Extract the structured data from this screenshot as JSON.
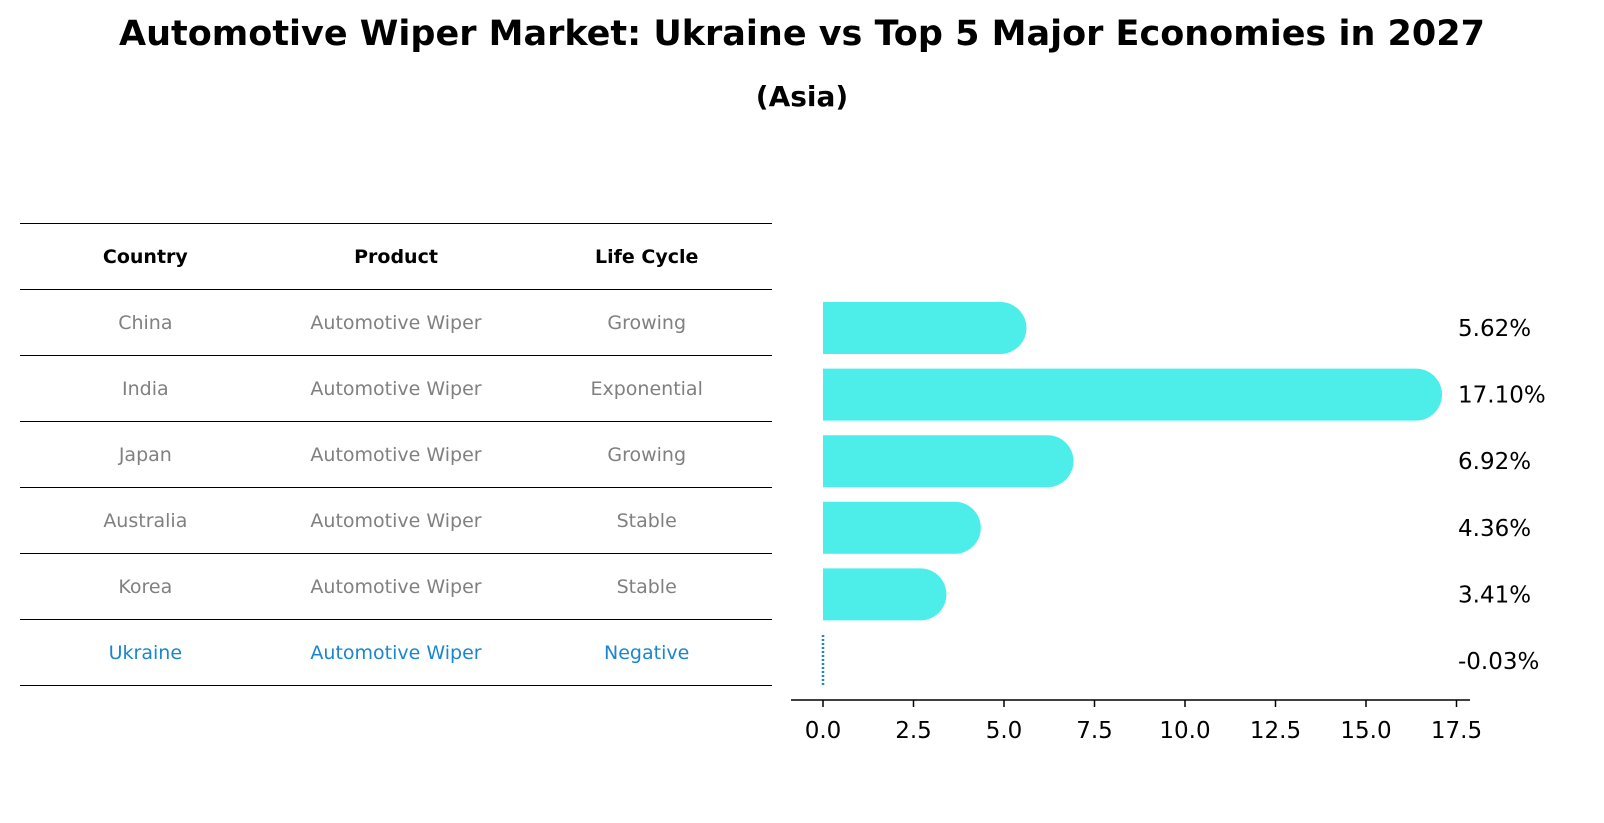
{
  "title": "Automotive Wiper Market: Ukraine vs Top 5 Major Economies in 2027",
  "subtitle": "(Asia)",
  "table": {
    "headers": [
      "Country",
      "Product",
      "Life Cycle"
    ],
    "rows": [
      [
        "China",
        "Automotive Wiper",
        "Growing"
      ],
      [
        "India",
        "Automotive Wiper",
        "Exponential"
      ],
      [
        "Japan",
        "Automotive Wiper",
        "Growing"
      ],
      [
        "Australia",
        "Automotive Wiper",
        "Stable"
      ],
      [
        "Korea",
        "Automotive Wiper",
        "Stable"
      ],
      [
        "Ukraine",
        "Automotive Wiper",
        "Negative"
      ]
    ],
    "highlight_color": "#1a86d0",
    "text_color": "#808080"
  },
  "chart_data": {
    "type": "bar",
    "orientation": "horizontal",
    "categories": [
      "China",
      "India",
      "Japan",
      "Australia",
      "Korea",
      "Ukraine"
    ],
    "values": [
      5.62,
      17.1,
      6.92,
      4.36,
      3.41,
      -0.03
    ],
    "labels": [
      "5.62%",
      "17.10%",
      "6.92%",
      "4.36%",
      "3.41%",
      "-0.03%"
    ],
    "xticks": [
      0.0,
      2.5,
      5.0,
      7.5,
      10.0,
      12.5,
      15.0,
      17.5
    ],
    "xtick_labels": [
      "0.0",
      "2.5",
      "5.0",
      "7.5",
      "10.0",
      "12.5",
      "15.0",
      "17.5"
    ],
    "xlim": [
      -0.9,
      18.0
    ],
    "bar_color": "#4deeea",
    "negative_color": "#1a86d0",
    "grid": false
  }
}
